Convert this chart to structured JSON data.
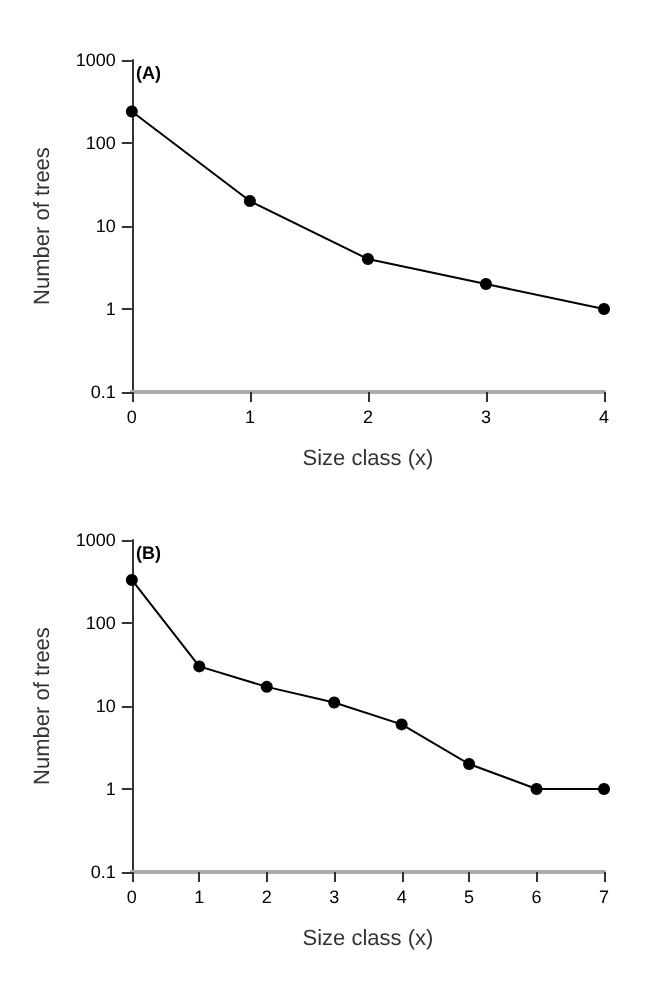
{
  "chart_data": [
    {
      "type": "line",
      "annotations": [
        "(A)"
      ],
      "xlabel": "Size class (x)",
      "ylabel": "Number of trees",
      "x": [
        0,
        1,
        2,
        3,
        4
      ],
      "series": [
        {
          "color": "#000000",
          "values": [
            240,
            20,
            4,
            2,
            1
          ]
        }
      ],
      "xlim": [
        0,
        4
      ],
      "xticks": [
        0,
        1,
        2,
        3,
        4
      ],
      "ylim": [
        0.1,
        1000
      ],
      "yticks": [
        0.1,
        1,
        10,
        100,
        1000
      ],
      "log": "y",
      "marker": "circle",
      "line_style": "solid"
    },
    {
      "type": "line",
      "annotations": [
        "(B)"
      ],
      "xlabel": "Size class (x)",
      "ylabel": "Number of trees",
      "x": [
        0,
        1,
        2,
        3,
        4,
        5,
        6,
        7
      ],
      "series": [
        {
          "color": "#000000",
          "values": [
            330,
            30,
            17,
            11,
            6,
            2,
            1,
            1
          ]
        }
      ],
      "xlim": [
        0,
        7
      ],
      "xticks": [
        0,
        1,
        2,
        3,
        4,
        5,
        6,
        7
      ],
      "ylim": [
        0.1,
        1000
      ],
      "yticks": [
        0.1,
        1,
        10,
        100,
        1000
      ],
      "log": "y",
      "marker": "circle",
      "line_style": "solid"
    }
  ]
}
